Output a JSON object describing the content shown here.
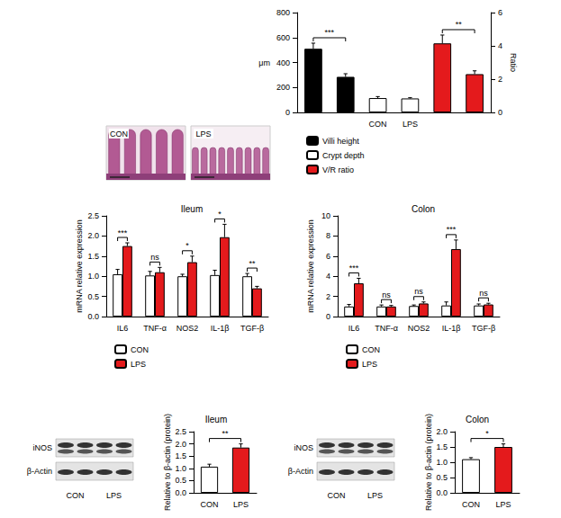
{
  "histology": {
    "labels": [
      "CON",
      "LPS"
    ]
  },
  "blots": [
    {
      "rows": [
        "iNOS",
        "β-Actin"
      ],
      "lanes": [
        "CON",
        "LPS"
      ]
    },
    {
      "rows": [
        "iNOS",
        "β-Actin"
      ],
      "lanes": [
        "CON",
        "LPS"
      ]
    }
  ],
  "chart_data": [
    {
      "type": "bar",
      "ylabel": "μm",
      "y2label": "Ratio",
      "categories": [
        null,
        null,
        "CON",
        "LPS",
        null,
        null
      ],
      "series": [
        {
          "name": "Villi height",
          "color": "#000000",
          "values": [
            510,
            285,
            null,
            null,
            null,
            null
          ],
          "errors": [
            45,
            25,
            null,
            null,
            null,
            null
          ]
        },
        {
          "name": "Crypt depth",
          "color": "#ffffff",
          "values": [
            null,
            null,
            115,
            112,
            null,
            null
          ],
          "errors": [
            null,
            null,
            12,
            6,
            null,
            null
          ]
        },
        {
          "name": "V/R ratio",
          "color": "#e41a1c",
          "axis": "y2",
          "values": [
            null,
            null,
            null,
            null,
            4.15,
            2.3
          ],
          "errors": [
            null,
            null,
            null,
            null,
            0.5,
            0.2
          ]
        }
      ],
      "ylim": [
        0,
        800
      ],
      "yticks": [
        0,
        200,
        400,
        600,
        800
      ],
      "y2lim": [
        0,
        6
      ],
      "y2ticks": [
        0,
        2,
        4,
        6
      ],
      "significance": [
        {
          "series": "Villi height",
          "label": "***"
        },
        {
          "series": "V/R ratio",
          "label": "**"
        }
      ],
      "legend": "bottom",
      "grid": false
    },
    {
      "type": "bar",
      "title": "Ileum",
      "ylabel": "mRNA relative expression",
      "categories": [
        "IL6",
        "TNF-α",
        "NOS2",
        "IL-1β",
        "TGF-β"
      ],
      "series": [
        {
          "name": "CON",
          "color": "#ffffff",
          "values": [
            1.05,
            1.02,
            1.0,
            1.03,
            1.0
          ],
          "errors": [
            0.12,
            0.1,
            0.05,
            0.12,
            0.07
          ]
        },
        {
          "name": "LPS",
          "color": "#e41a1c",
          "values": [
            1.75,
            1.1,
            1.35,
            1.97,
            0.7
          ],
          "errors": [
            0.08,
            0.12,
            0.15,
            0.32,
            0.05
          ]
        }
      ],
      "ylim": [
        0,
        2.5
      ],
      "yticks": [
        {
          "value": 0,
          "label": "0.0"
        },
        {
          "value": 0.5,
          "label": "0.5"
        },
        {
          "value": 1,
          "label": "1.0"
        },
        {
          "value": 1.5,
          "label": "1.5"
        },
        {
          "value": 2,
          "label": "2.0"
        },
        {
          "value": 2.5,
          "label": "2.5"
        }
      ],
      "significance": [
        "***",
        "ns",
        "*",
        "*",
        "**"
      ],
      "legend": "bottom",
      "grid": false
    },
    {
      "type": "bar",
      "title": "Colon",
      "ylabel": "mRNA relative expression",
      "categories": [
        "IL6",
        "TNF-α",
        "NOS2",
        "IL-1β",
        "TGF-β"
      ],
      "series": [
        {
          "name": "CON",
          "color": "#ffffff",
          "values": [
            1.0,
            1.0,
            1.05,
            1.1,
            1.1
          ],
          "errors": [
            0.2,
            0.15,
            0.1,
            0.35,
            0.15
          ]
        },
        {
          "name": "LPS",
          "color": "#e41a1c",
          "values": [
            3.3,
            1.0,
            1.3,
            6.7,
            1.2
          ],
          "errors": [
            0.5,
            0.1,
            0.15,
            0.9,
            0.12
          ]
        }
      ],
      "ylim": [
        0,
        10
      ],
      "yticks": [
        0,
        2,
        4,
        6,
        8,
        10
      ],
      "significance": [
        "***",
        "ns",
        "ns",
        "***",
        "ns"
      ],
      "legend": "bottom",
      "grid": false
    },
    {
      "type": "bar",
      "title": "Ileum",
      "ylabel": "Relative to β-actin (protein)",
      "categories": [
        "CON",
        "LPS"
      ],
      "values": [
        1.07,
        1.85
      ],
      "errors": [
        0.1,
        0.15
      ],
      "colors": [
        "#ffffff",
        "#e41a1c"
      ],
      "ylim": [
        0,
        2.5
      ],
      "yticks": [
        {
          "value": 0,
          "label": "0.0"
        },
        {
          "value": 0.5,
          "label": "0.5"
        },
        {
          "value": 1,
          "label": "1.0"
        },
        {
          "value": 1.5,
          "label": "1.5"
        },
        {
          "value": 2,
          "label": "2.0"
        },
        {
          "value": 2.5,
          "label": "2.5"
        }
      ],
      "significance": "**",
      "grid": false
    },
    {
      "type": "bar",
      "title": "Colon",
      "ylabel": "Relative to β-actin (protein)",
      "categories": [
        "CON",
        "LPS"
      ],
      "values": [
        1.1,
        1.5
      ],
      "errors": [
        0.05,
        0.1
      ],
      "colors": [
        "#ffffff",
        "#e41a1c"
      ],
      "ylim": [
        0,
        2
      ],
      "yticks": [
        {
          "value": 0,
          "label": "0.0"
        },
        {
          "value": 0.5,
          "label": "0.5"
        },
        {
          "value": 1,
          "label": "1.0"
        },
        {
          "value": 1.5,
          "label": "1.5"
        },
        {
          "value": 2,
          "label": "2.0"
        }
      ],
      "significance": "*",
      "grid": false
    }
  ]
}
